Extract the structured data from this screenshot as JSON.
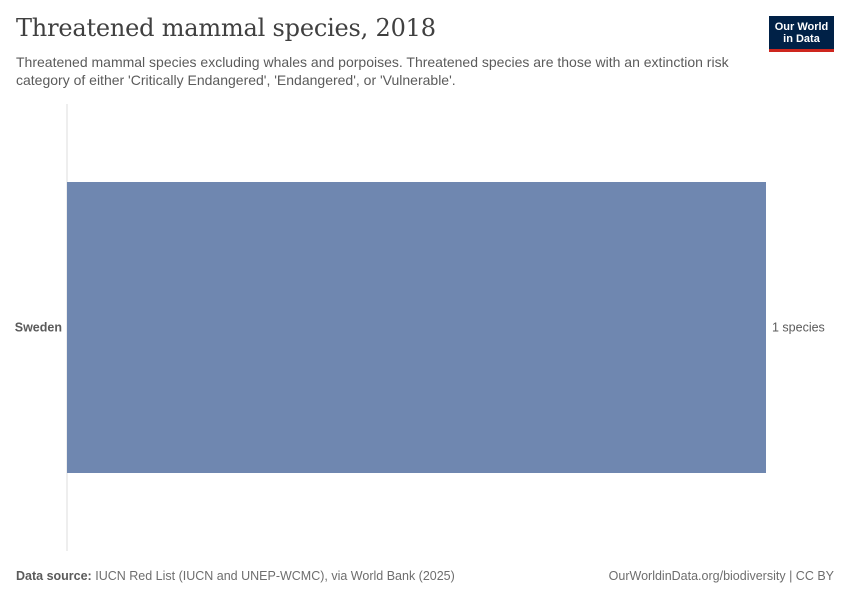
{
  "header": {
    "title": "Threatened mammal species, 2018",
    "subtitle": "Threatened mammal species excluding whales and porpoises. Threatened species are those with an extinction risk category of either 'Critically Endangered', 'Endangered', or 'Vulnerable'."
  },
  "logo": {
    "line1": "Our World",
    "line2": "in Data"
  },
  "chart_data": {
    "type": "bar",
    "orientation": "horizontal",
    "title": "Threatened mammal species, 2018",
    "categories": [
      "Sweden"
    ],
    "values": [
      1
    ],
    "value_labels": [
      "1 species"
    ],
    "xlim": [
      0,
      1
    ],
    "unit": "species",
    "bar_color": "#6f87b0",
    "grid": false
  },
  "footer": {
    "source_label": "Data source:",
    "source_text": "IUCN Red List (IUCN and UNEP-WCMC), via World Bank (2025)",
    "right_text": "OurWorldinData.org/biodiversity | CC BY"
  },
  "colors": {
    "bar": "#6f87b0",
    "axis": "#dcdcdc",
    "logo_bg": "#002147",
    "logo_accent": "#ce261e"
  }
}
